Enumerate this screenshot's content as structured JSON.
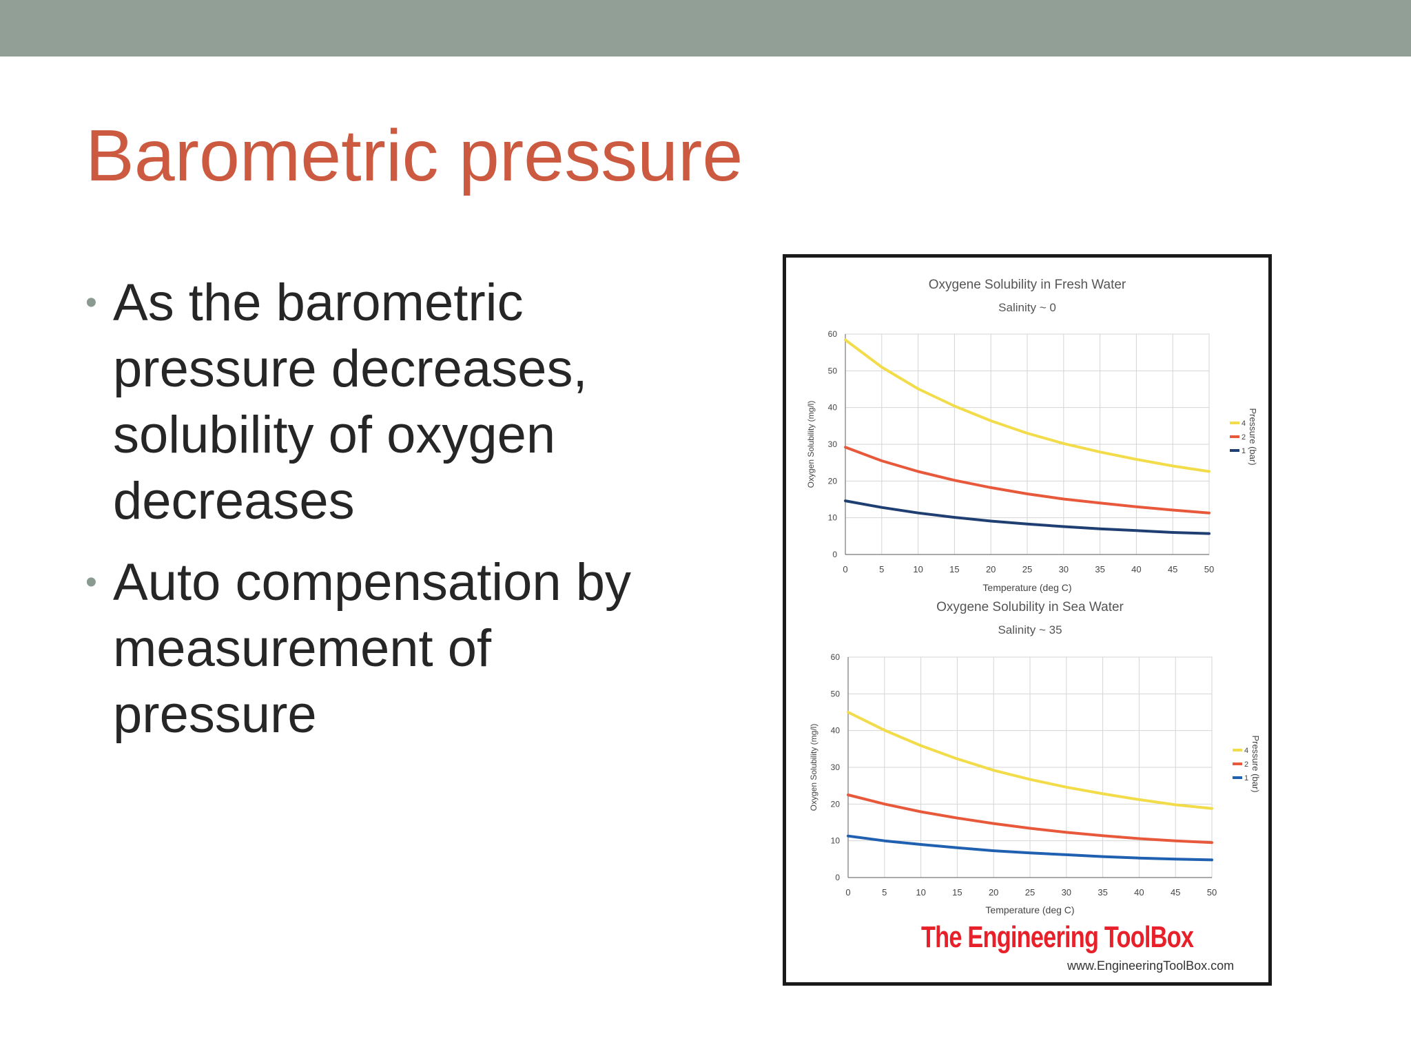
{
  "slide": {
    "title": "Barometric pressure",
    "bullets": [
      "As the barometric pressure decreases, solubility of oxygen decreases",
      "Auto compensation by measurement of pressure"
    ],
    "bullet_glyph": "•"
  },
  "branding": {
    "name": "The Engineering ToolBox",
    "url": "www.EngineeringToolBox.com",
    "color": "#e8202a"
  },
  "chart_data": [
    {
      "type": "line",
      "title": "Oxygene Solubility in Fresh Water",
      "subtitle": "Salinity ~ 0",
      "xlabel": "Temperature (deg C)",
      "ylabel": "Oxygen Solubility (mg/l)",
      "legend_title": "Pressure (bar)",
      "legend_position": "right",
      "grid": true,
      "xlim": [
        0,
        50
      ],
      "ylim": [
        0,
        60
      ],
      "x_ticks": [
        0,
        5,
        10,
        15,
        20,
        25,
        30,
        35,
        40,
        45,
        50
      ],
      "y_ticks": [
        0,
        10,
        20,
        30,
        40,
        50,
        60
      ],
      "x": [
        0,
        5,
        10,
        15,
        20,
        25,
        30,
        35,
        40,
        45,
        50
      ],
      "series": [
        {
          "name": "4",
          "color": "#f2dc4a",
          "values": [
            58.4,
            51.0,
            45.1,
            40.4,
            36.4,
            33.0,
            30.2,
            27.9,
            25.9,
            24.1,
            22.6
          ]
        },
        {
          "name": "2",
          "color": "#e8593c",
          "values": [
            29.2,
            25.5,
            22.6,
            20.2,
            18.2,
            16.5,
            15.1,
            14.0,
            13.0,
            12.1,
            11.3
          ]
        },
        {
          "name": "1",
          "color": "#1f3f73",
          "values": [
            14.6,
            12.8,
            11.3,
            10.1,
            9.1,
            8.3,
            7.6,
            7.0,
            6.5,
            6.0,
            5.7
          ]
        }
      ]
    },
    {
      "type": "line",
      "title": "Oxygene Solubility in Sea Water",
      "subtitle": "Salinity ~ 35",
      "xlabel": "Temperature (deg C)",
      "ylabel": "Oxygen Solubility (mg/l)",
      "legend_title": "Pressure (bar)",
      "legend_position": "right",
      "grid": true,
      "xlim": [
        0,
        50
      ],
      "ylim": [
        0,
        60
      ],
      "x_ticks": [
        0,
        5,
        10,
        15,
        20,
        25,
        30,
        35,
        40,
        45,
        50
      ],
      "y_ticks": [
        0,
        10,
        20,
        30,
        40,
        50,
        60
      ],
      "x": [
        0,
        5,
        10,
        15,
        20,
        25,
        30,
        35,
        40,
        45,
        50
      ],
      "series": [
        {
          "name": "4",
          "color": "#f2dc4a",
          "values": [
            45.0,
            40.1,
            35.9,
            32.3,
            29.2,
            26.7,
            24.6,
            22.8,
            21.2,
            19.8,
            18.8
          ]
        },
        {
          "name": "2",
          "color": "#e8593c",
          "values": [
            22.5,
            20.0,
            17.9,
            16.2,
            14.7,
            13.4,
            12.3,
            11.4,
            10.6,
            10.0,
            9.5
          ]
        },
        {
          "name": "1",
          "color": "#2060b0",
          "values": [
            11.3,
            10.0,
            9.0,
            8.1,
            7.3,
            6.7,
            6.2,
            5.7,
            5.3,
            5.0,
            4.8
          ]
        }
      ]
    }
  ]
}
